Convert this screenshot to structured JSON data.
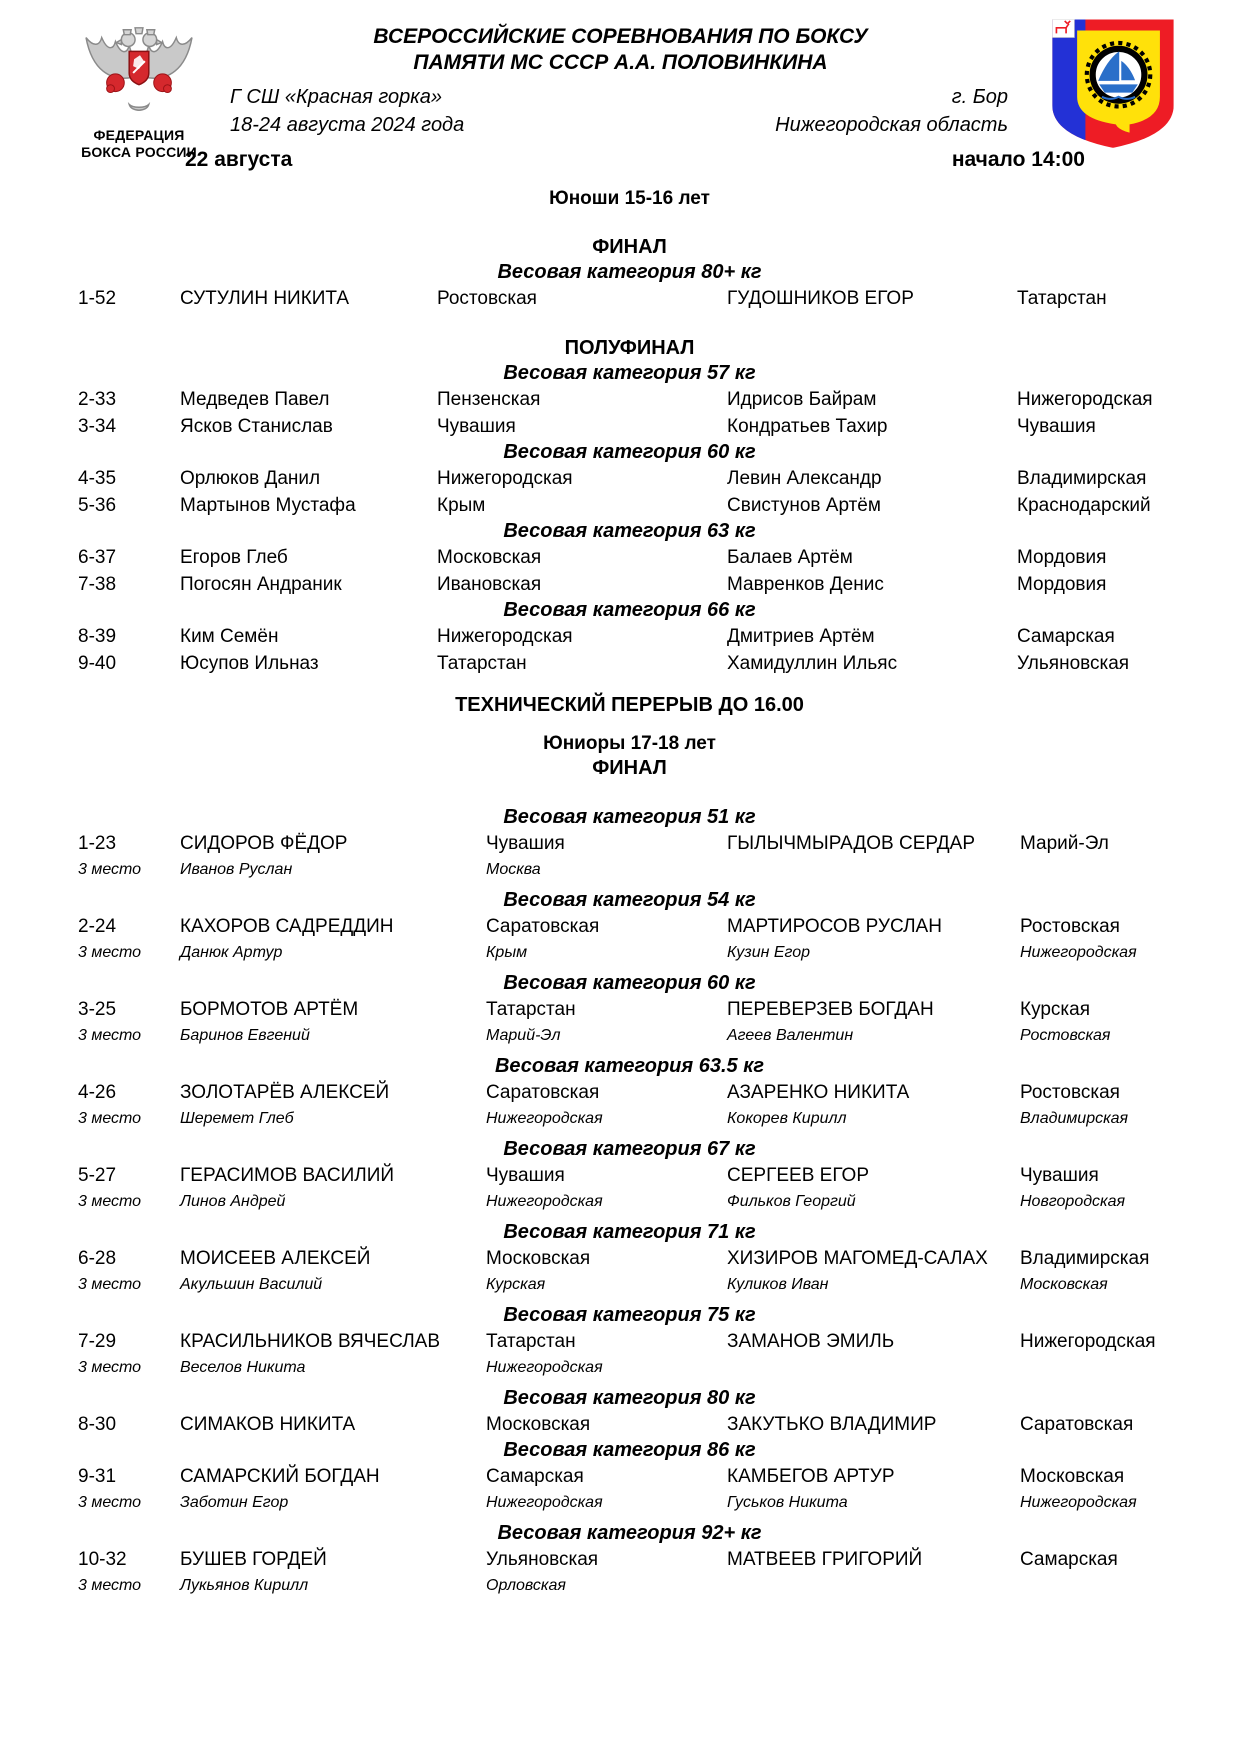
{
  "header": {
    "org_line1": "ФЕДЕРАЦИЯ",
    "org_line2": "БОКСА РОССИИ",
    "title_line1": "ВСЕРОССИЙСКИЕ СОРЕВНОВАНИЯ ПО БОКСУ",
    "title_line2": "ПАМЯТИ МС СССР А.А. ПОЛОВИНКИНА",
    "venue": "Г СШ «Красная горка»",
    "dates": "18-24 августа  2024 года",
    "city": "г. Бор",
    "region": "Нижегородская область",
    "day": "22 августа",
    "start_time": "начало 14:00"
  },
  "colors": {
    "federation_red": "#d5282d",
    "eagle_gray": "#a9a9a9",
    "bor_blue": "#2331d6",
    "bor_red": "#ee1c25",
    "bor_yellow": "#ffe10a",
    "emblem_sail_blue": "#2a6fc9"
  },
  "schedule": [
    {
      "type": "age",
      "text": "Юноши 15-16 лет"
    },
    {
      "type": "stage",
      "text": "ФИНАЛ",
      "gap": "lg"
    },
    {
      "type": "weight",
      "text": "Весовая категория 80+ кг"
    },
    {
      "type": "bout",
      "section": "youth",
      "num": "1-52",
      "red_name": "СУТУЛИН НИКИТА",
      "red_region": "Ростовская",
      "blue_name": "ГУДОШНИКОВ ЕГОР",
      "blue_region": "Татарстан"
    },
    {
      "type": "stage",
      "text": "ПОЛУФИНАЛ",
      "gap": "lg"
    },
    {
      "type": "weight",
      "text": "Весовая категория 57 кг"
    },
    {
      "type": "bout",
      "section": "youth",
      "num": "2-33",
      "red_name": "Медведев Павел",
      "red_region": "Пензенская",
      "blue_name": "Идрисов Байрам",
      "blue_region": "Нижегородская"
    },
    {
      "type": "bout",
      "section": "youth",
      "num": "3-34",
      "red_name": "Ясков Станислав",
      "red_region": "Чувашия",
      "blue_name": "Кондратьев Тахир",
      "blue_region": "Чувашия"
    },
    {
      "type": "weight",
      "text": "Весовая категория 60 кг"
    },
    {
      "type": "bout",
      "section": "youth",
      "num": "4-35",
      "red_name": "Орлюков Данил",
      "red_region": "Нижегородская",
      "blue_name": "Левин Александр",
      "blue_region": "Владимирская"
    },
    {
      "type": "bout",
      "section": "youth",
      "num": "5-36",
      "red_name": "Мартынов Мустафа",
      "red_region": "Крым",
      "blue_name": "Свистунов Артём",
      "blue_region": "Краснодарский"
    },
    {
      "type": "weight",
      "text": "Весовая категория 63 кг"
    },
    {
      "type": "bout",
      "section": "youth",
      "num": "6-37",
      "red_name": "Егоров Глеб",
      "red_region": "Московская",
      "blue_name": "Балаев Артём",
      "blue_region": "Мордовия"
    },
    {
      "type": "bout",
      "section": "youth",
      "num": "7-38",
      "red_name": "Погосян Андраник",
      "red_region": "Ивановская",
      "blue_name": "Мавренков Денис",
      "blue_region": "Мордовия"
    },
    {
      "type": "weight",
      "text": "Весовая категория 66 кг"
    },
    {
      "type": "bout",
      "section": "youth",
      "num": "8-39",
      "red_name": "Ким Семён",
      "red_region": "Нижегородская",
      "blue_name": "Дмитриев Артём",
      "blue_region": "Самарская"
    },
    {
      "type": "bout",
      "section": "youth",
      "num": "9-40",
      "red_name": "Юсупов Ильназ",
      "red_region": "Татарстан",
      "blue_name": "Хамидуллин Ильяс",
      "blue_region": "Ульяновская"
    },
    {
      "type": "break",
      "text": "ТЕХНИЧЕСКИЙ ПЕРЕРЫВ ДО 16.00"
    },
    {
      "type": "age",
      "text": "Юниоры 17-18 лет",
      "gap": "md"
    },
    {
      "type": "stage",
      "text": "ФИНАЛ"
    },
    {
      "type": "weight",
      "text": "Весовая категория 51 кг",
      "gap": "lg"
    },
    {
      "type": "bout",
      "section": "juniors",
      "num": "1-23",
      "red_name": "СИДОРОВ ФЁДОР",
      "red_region": "Чувашия",
      "blue_name": "ГЫЛЫЧМЫРАДОВ СЕРДАР",
      "blue_region": "Марий-Эл"
    },
    {
      "type": "third",
      "section": "juniors",
      "label": "3 место",
      "red_name": "Иванов Руслан",
      "red_region": "Москва",
      "blue_name": "",
      "blue_region": ""
    },
    {
      "type": "weight",
      "text": "Весовая категория 54 кг",
      "gap": "sm"
    },
    {
      "type": "bout",
      "section": "juniors",
      "num": "2-24",
      "red_name": "КАХОРОВ САДРЕДДИН",
      "red_region": "Саратовская",
      "blue_name": "МАРТИРОСОВ РУСЛАН",
      "blue_region": "Ростовская"
    },
    {
      "type": "third",
      "section": "juniors",
      "label": "3 место",
      "red_name": "Данюк Артур",
      "red_region": "Крым",
      "blue_name": "Кузин Егор",
      "blue_region": "Нижегородская"
    },
    {
      "type": "weight",
      "text": "Весовая категория 60 кг",
      "gap": "sm"
    },
    {
      "type": "bout",
      "section": "juniors",
      "num": "3-25",
      "red_name": "БОРМОТОВ АРТЁМ",
      "red_region": "Татарстан",
      "blue_name": "ПЕРЕВЕРЗЕВ БОГДАН",
      "blue_region": "Курская"
    },
    {
      "type": "third",
      "section": "juniors",
      "label": "3 место",
      "red_name": "Баринов Евгений",
      "red_region": "Марий-Эл",
      "blue_name": "Агеев Валентин",
      "blue_region": "Ростовская"
    },
    {
      "type": "weight",
      "text": "Весовая категория 63.5 кг",
      "gap": "sm"
    },
    {
      "type": "bout",
      "section": "juniors",
      "num": "4-26",
      "red_name": "ЗОЛОТАРЁВ АЛЕКСЕЙ",
      "red_region": "Саратовская",
      "blue_name": "АЗАРЕНКО НИКИТА",
      "blue_region": "Ростовская"
    },
    {
      "type": "third",
      "section": "juniors",
      "label": "3 место",
      "red_name": "Шеремет Глеб",
      "red_region": "Нижегородская",
      "blue_name": "Кокорев Кирилл",
      "blue_region": "Владимирская"
    },
    {
      "type": "weight",
      "text": "Весовая категория 67 кг",
      "gap": "sm"
    },
    {
      "type": "bout",
      "section": "juniors",
      "num": "5-27",
      "red_name": "ГЕРАСИМОВ ВАСИЛИЙ",
      "red_region": "Чувашия",
      "blue_name": "СЕРГЕЕВ ЕГОР",
      "blue_region": "Чувашия"
    },
    {
      "type": "third",
      "section": "juniors",
      "label": "3 место",
      "red_name": "Линов Андрей",
      "red_region": "Нижегородская",
      "blue_name": "Фильков Георгий",
      "blue_region": "Новгородская"
    },
    {
      "type": "weight",
      "text": "Весовая категория 71 кг",
      "gap": "sm"
    },
    {
      "type": "bout",
      "section": "juniors",
      "num": "6-28",
      "red_name": "МОИСЕЕВ АЛЕКСЕЙ",
      "red_region": "Московская",
      "blue_name": "ХИЗИРОВ МАГОМЕД-САЛАХ",
      "blue_region": "Владимирская"
    },
    {
      "type": "third",
      "section": "juniors",
      "label": "3 место",
      "red_name": "Акульшин Василий",
      "red_region": "Курская",
      "blue_name": "Куликов Иван",
      "blue_region": "Московская"
    },
    {
      "type": "weight",
      "text": "Весовая категория 75 кг",
      "gap": "sm"
    },
    {
      "type": "bout",
      "section": "juniors",
      "num": "7-29",
      "red_name": "КРАСИЛЬНИКОВ ВЯЧЕСЛАВ",
      "red_region": "Татарстан",
      "blue_name": "ЗАМАНОВ ЭМИЛЬ",
      "blue_region": "Нижегородская"
    },
    {
      "type": "third",
      "section": "juniors",
      "label": "3 место",
      "red_name": "Веселов Никита",
      "red_region": "Нижегородская",
      "blue_name": "",
      "blue_region": ""
    },
    {
      "type": "weight",
      "text": "Весовая категория 80 кг",
      "gap": "sm"
    },
    {
      "type": "bout",
      "section": "juniors",
      "num": "8-30",
      "red_name": "СИМАКОВ НИКИТА",
      "red_region": "Московская",
      "blue_name": "ЗАКУТЬКО ВЛАДИМИР",
      "blue_region": "Саратовская"
    },
    {
      "type": "weight",
      "text": "Весовая категория 86 кг"
    },
    {
      "type": "bout",
      "section": "juniors",
      "num": "9-31",
      "red_name": "САМАРСКИЙ БОГДАН",
      "red_region": "Самарская",
      "blue_name": "КАМБЕГОВ АРТУР",
      "blue_region": "Московская"
    },
    {
      "type": "third",
      "section": "juniors",
      "label": "3 место",
      "red_name": "Заботин Егор",
      "red_region": "Нижегородская",
      "blue_name": "Гуськов Никита",
      "blue_region": "Нижегородская"
    },
    {
      "type": "weight",
      "text": "Весовая категория 92+ кг",
      "gap": "sm"
    },
    {
      "type": "bout",
      "section": "juniors",
      "num": "10-32",
      "red_name": "БУШЕВ ГОРДЕЙ",
      "red_region": "Ульяновская",
      "blue_name": "МАТВЕЕВ ГРИГОРИЙ",
      "blue_region": "Самарская"
    },
    {
      "type": "third",
      "section": "juniors",
      "label": "3 место",
      "red_name": "Лукьянов Кирилл",
      "red_region": "Орловская",
      "blue_name": "",
      "blue_region": ""
    }
  ]
}
